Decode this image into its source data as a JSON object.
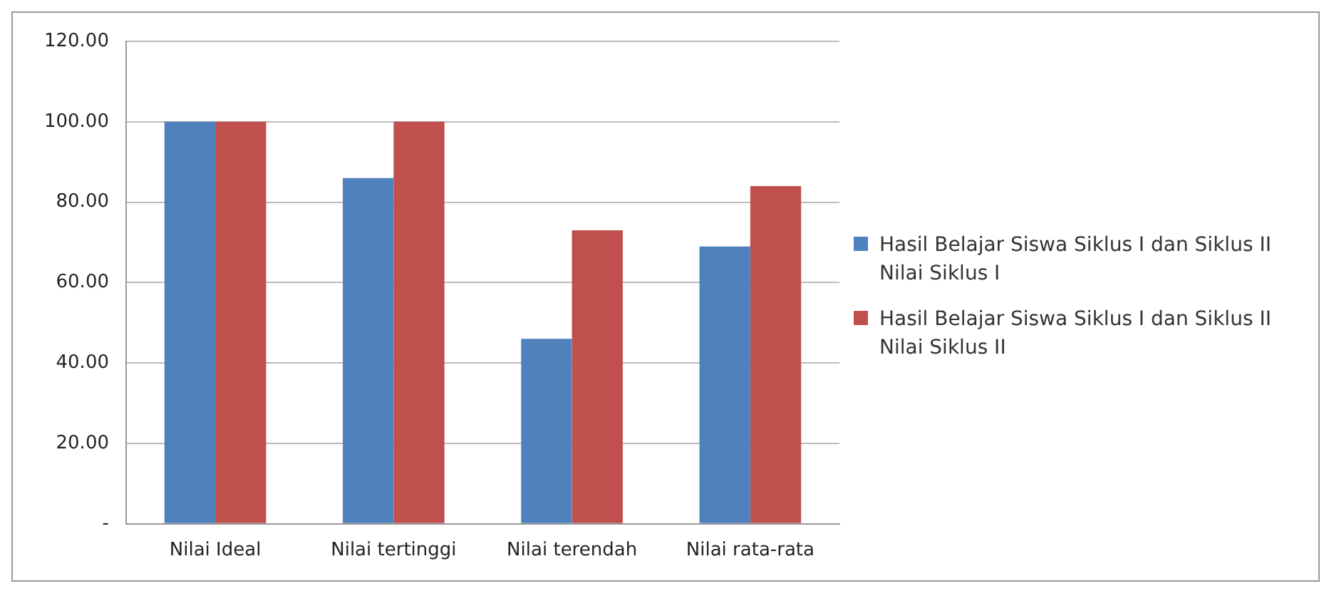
{
  "chart_data": {
    "type": "bar",
    "categories": [
      "Nilai Ideal",
      "Nilai tertinggi",
      "Nilai terendah",
      "Nilai rata-rata"
    ],
    "series": [
      {
        "name": "Hasil Belajar Siswa Siklus I dan Siklus II Nilai Siklus I",
        "color": "#4f81bd",
        "values": [
          100,
          86,
          46,
          69
        ]
      },
      {
        "name": "Hasil Belajar Siswa Siklus I dan Siklus II Nilai Siklus II",
        "color": "#c0504d",
        "values": [
          100,
          100,
          73,
          84
        ]
      }
    ],
    "ylim": [
      0,
      120
    ],
    "yticks": [
      {
        "value": 0,
        "label": "-"
      },
      {
        "value": 20,
        "label": "20.00"
      },
      {
        "value": 40,
        "label": "40.00"
      },
      {
        "value": 60,
        "label": "60.00"
      },
      {
        "value": 80,
        "label": "80.00"
      },
      {
        "value": 100,
        "label": "100.00"
      },
      {
        "value": 120,
        "label": "120.00"
      }
    ],
    "grid": "y",
    "legend": "right"
  }
}
